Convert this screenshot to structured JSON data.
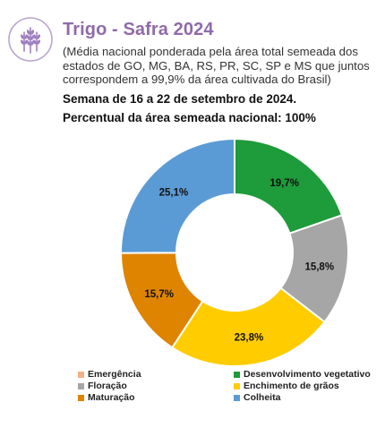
{
  "header": {
    "title": "Trigo - Safra 2024",
    "subtitle": "(Média nacional ponderada pela área total semeada dos estados de GO, MG, BA, RS, PR, SC, SP e MS que juntos correspondem a 99,9% da área cultivada do Brasil)",
    "week": "Semana de 16 a 22 de setembro de 2024.",
    "percent_line": "Percentual da área semeada nacional: 100%",
    "icon": "wheat-icon",
    "icon_color": "#9f7fbf"
  },
  "chart_data": {
    "type": "pie",
    "donut": true,
    "categories": [
      "Emergência",
      "Desenvolvimento vegetativo",
      "Floração",
      "Enchimento de grãos",
      "Maturação",
      "Colheita"
    ],
    "values": [
      0,
      19.7,
      15.8,
      23.8,
      15.7,
      25.1
    ],
    "labels": [
      "",
      "19,7%",
      "15,8%",
      "23,8%",
      "15,7%",
      "25,1%"
    ],
    "colors": [
      "#f4b183",
      "#1e9b3a",
      "#a6a6a6",
      "#ffcc00",
      "#de8400",
      "#5b9bd5"
    ],
    "legend_position": "bottom"
  }
}
